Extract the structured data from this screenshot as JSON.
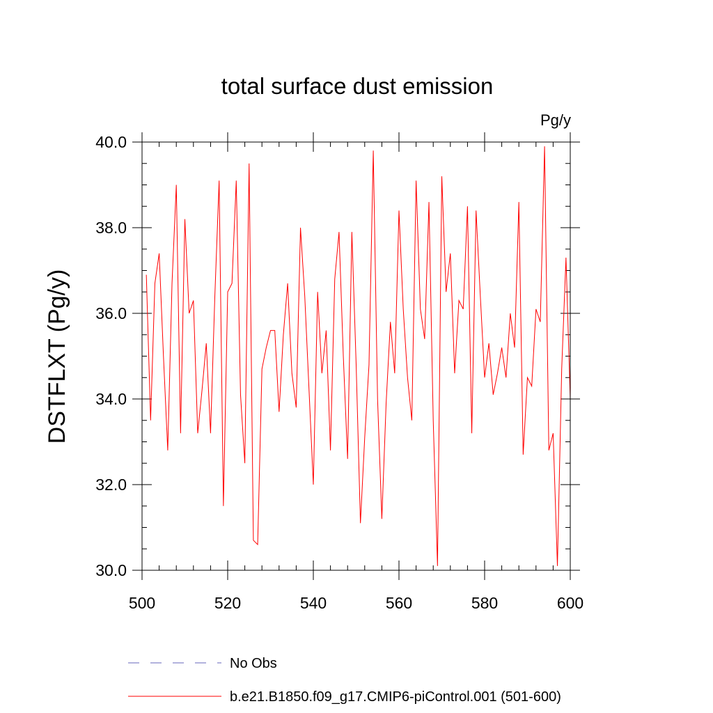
{
  "chart_data": {
    "type": "line",
    "title": "total surface dust emission",
    "units": "Pg/y",
    "ylabel": "DSTFLXT  (Pg/y)",
    "xlabel": "",
    "xlim": [
      500,
      600
    ],
    "ylim": [
      30.0,
      40.0
    ],
    "x_ticks": [
      500,
      520,
      540,
      560,
      580,
      600
    ],
    "x_tick_labels": [
      "500",
      "520",
      "540",
      "560",
      "580",
      "600"
    ],
    "y_ticks": [
      30.0,
      32.0,
      34.0,
      36.0,
      38.0,
      40.0
    ],
    "y_tick_labels": [
      "30.0",
      "32.0",
      "34.0",
      "36.0",
      "38.0",
      "40.0"
    ],
    "grid": false,
    "legend_position": "bottom",
    "legend": [
      {
        "label": "No Obs",
        "color": "#6666bb",
        "style": "dashed"
      },
      {
        "label": "b.e21.B1850.f09_g17.CMIP6-piControl.001 (501-600)",
        "color": "#ff0000",
        "style": "solid"
      }
    ],
    "series": [
      {
        "name": "b.e21.B1850.f09_g17.CMIP6-piControl.001 (501-600)",
        "color": "#ff0000",
        "x": [
          501,
          502,
          503,
          504,
          505,
          506,
          507,
          508,
          509,
          510,
          511,
          512,
          513,
          514,
          515,
          516,
          517,
          518,
          519,
          520,
          521,
          522,
          523,
          524,
          525,
          526,
          527,
          528,
          529,
          530,
          531,
          532,
          533,
          534,
          535,
          536,
          537,
          538,
          539,
          540,
          541,
          542,
          543,
          544,
          545,
          546,
          547,
          548,
          549,
          550,
          551,
          552,
          553,
          554,
          555,
          556,
          557,
          558,
          559,
          560,
          561,
          562,
          563,
          564,
          565,
          566,
          567,
          568,
          569,
          570,
          571,
          572,
          573,
          574,
          575,
          576,
          577,
          578,
          579,
          580,
          581,
          582,
          583,
          584,
          585,
          586,
          587,
          588,
          589,
          590,
          591,
          592,
          593,
          594,
          595,
          596,
          597,
          598,
          599,
          600
        ],
        "values": [
          36.9,
          33.5,
          36.7,
          37.4,
          35.0,
          32.8,
          36.7,
          39.0,
          33.2,
          38.2,
          36.0,
          36.3,
          33.2,
          34.2,
          35.3,
          33.2,
          36.4,
          39.1,
          31.5,
          36.5,
          36.7,
          39.1,
          34.1,
          32.5,
          39.5,
          30.7,
          30.6,
          34.7,
          35.2,
          35.6,
          35.6,
          33.7,
          35.5,
          36.7,
          34.6,
          33.8,
          38.0,
          36.4,
          34.2,
          32.0,
          36.5,
          34.6,
          35.6,
          32.8,
          36.8,
          37.9,
          35.0,
          32.6,
          37.9,
          34.8,
          31.1,
          33.1,
          34.8,
          39.8,
          34.0,
          31.2,
          33.9,
          35.8,
          34.6,
          38.4,
          36.1,
          34.5,
          33.5,
          39.1,
          36.1,
          35.4,
          38.6,
          33.5,
          30.1,
          39.2,
          36.5,
          37.4,
          34.6,
          36.3,
          36.1,
          38.5,
          33.2,
          38.4,
          36.4,
          34.5,
          35.3,
          34.1,
          34.6,
          35.2,
          34.5,
          36.0,
          35.2,
          38.6,
          32.7,
          34.5,
          34.3,
          36.1,
          35.8,
          39.9,
          32.8,
          33.2,
          30.1,
          34.7,
          37.3,
          34.0
        ]
      }
    ]
  }
}
